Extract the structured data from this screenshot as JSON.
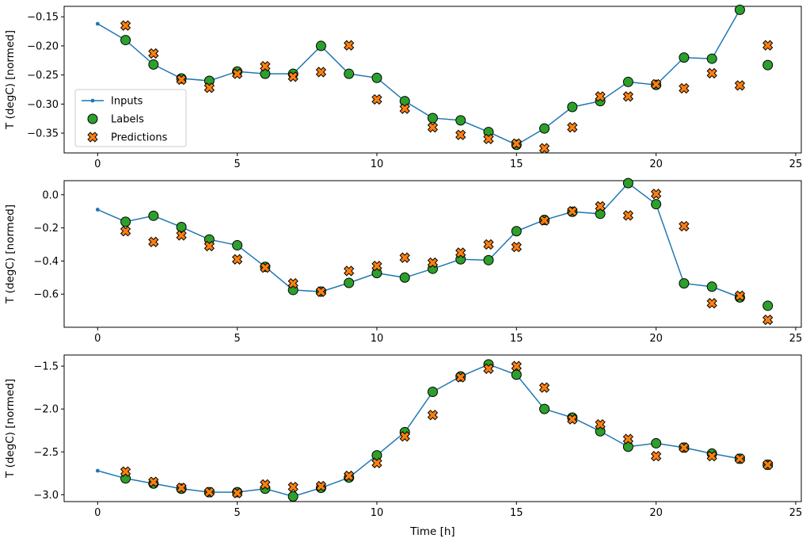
{
  "figure": {
    "xlabel": "Time [h]",
    "ylabel": "T (degC) [normed]",
    "background": "#ffffff"
  },
  "colors": {
    "inputs": "#1f77b4",
    "labels_fill": "#2ca02c",
    "predictions_fill": "#ff7f0e",
    "marker_edge": "#000000",
    "spine": "#000000",
    "legend_border": "#cccccc"
  },
  "legend": {
    "items": [
      {
        "label": "Inputs",
        "type": "line-dot"
      },
      {
        "label": "Labels",
        "type": "circle"
      },
      {
        "label": "Predictions",
        "type": "x"
      }
    ]
  },
  "chart_data": [
    {
      "type": "line",
      "title": "",
      "xlabel": "",
      "ylabel": "T (degC) [normed]",
      "xlim": [
        -1.2,
        25.2
      ],
      "ylim": [
        -0.384,
        -0.132
      ],
      "xticks": [
        0,
        5,
        10,
        15,
        20,
        25
      ],
      "xtick_labels": [
        "0",
        "5",
        "10",
        "15",
        "20",
        "25"
      ],
      "yticks": [
        -0.15,
        -0.2,
        -0.25,
        -0.3,
        -0.35
      ],
      "ytick_labels": [
        "−0.15",
        "−0.20",
        "−0.25",
        "−0.30",
        "−0.35"
      ],
      "series": [
        {
          "name": "Inputs",
          "type": "line",
          "x": [
            0,
            1,
            2,
            3,
            4,
            5,
            6,
            7,
            8,
            9,
            10,
            11,
            12,
            13,
            14,
            15,
            16,
            17,
            18,
            19,
            20,
            21,
            22,
            23
          ],
          "y": [
            -0.162,
            -0.19,
            -0.232,
            -0.256,
            -0.26,
            -0.244,
            -0.248,
            -0.248,
            -0.2,
            -0.248,
            -0.255,
            -0.295,
            -0.324,
            -0.328,
            -0.348,
            -0.37,
            -0.342,
            -0.305,
            -0.295,
            -0.262,
            -0.267,
            -0.22,
            -0.222,
            -0.138
          ]
        },
        {
          "name": "Labels",
          "type": "scatter-circle",
          "x": [
            1,
            2,
            3,
            4,
            5,
            6,
            7,
            8,
            9,
            10,
            11,
            12,
            13,
            14,
            15,
            16,
            17,
            18,
            19,
            20,
            21,
            22,
            23,
            24
          ],
          "y": [
            -0.19,
            -0.232,
            -0.256,
            -0.26,
            -0.244,
            -0.248,
            -0.248,
            -0.2,
            -0.248,
            -0.255,
            -0.295,
            -0.324,
            -0.328,
            -0.348,
            -0.37,
            -0.342,
            -0.305,
            -0.295,
            -0.262,
            -0.267,
            -0.22,
            -0.222,
            -0.138,
            -0.233
          ]
        },
        {
          "name": "Predictions",
          "type": "scatter-x",
          "x": [
            1,
            2,
            3,
            4,
            5,
            6,
            7,
            8,
            9,
            10,
            11,
            12,
            13,
            14,
            15,
            16,
            17,
            18,
            19,
            20,
            21,
            22,
            23,
            24
          ],
          "y": [
            -0.165,
            -0.213,
            -0.258,
            -0.272,
            -0.248,
            -0.235,
            -0.253,
            -0.245,
            -0.199,
            -0.292,
            -0.308,
            -0.34,
            -0.353,
            -0.36,
            -0.368,
            -0.376,
            -0.34,
            -0.287,
            -0.287,
            -0.266,
            -0.273,
            -0.247,
            -0.268,
            -0.199
          ]
        }
      ]
    },
    {
      "type": "line",
      "title": "",
      "xlabel": "",
      "ylabel": "T (degC) [normed]",
      "xlim": [
        -1.2,
        25.2
      ],
      "ylim": [
        -0.8,
        0.085
      ],
      "xticks": [
        0,
        5,
        10,
        15,
        20,
        25
      ],
      "xtick_labels": [
        "0",
        "5",
        "10",
        "15",
        "20",
        "25"
      ],
      "yticks": [
        0.0,
        -0.2,
        -0.4,
        -0.6
      ],
      "ytick_labels": [
        "0.0",
        "−0.2",
        "−0.4",
        "−0.6"
      ],
      "series": [
        {
          "name": "Inputs",
          "type": "line",
          "x": [
            0,
            1,
            2,
            3,
            4,
            5,
            6,
            7,
            8,
            9,
            10,
            11,
            12,
            13,
            14,
            15,
            16,
            17,
            18,
            19,
            20,
            21,
            22,
            23
          ],
          "y": [
            -0.09,
            -0.163,
            -0.127,
            -0.195,
            -0.27,
            -0.305,
            -0.435,
            -0.575,
            -0.585,
            -0.532,
            -0.473,
            -0.5,
            -0.447,
            -0.39,
            -0.395,
            -0.22,
            -0.152,
            -0.103,
            -0.115,
            0.07,
            -0.057,
            -0.535,
            -0.555,
            -0.62
          ]
        },
        {
          "name": "Labels",
          "type": "scatter-circle",
          "x": [
            1,
            2,
            3,
            4,
            5,
            6,
            7,
            8,
            9,
            10,
            11,
            12,
            13,
            14,
            15,
            16,
            17,
            18,
            19,
            20,
            21,
            22,
            23,
            24
          ],
          "y": [
            -0.163,
            -0.127,
            -0.195,
            -0.27,
            -0.305,
            -0.435,
            -0.575,
            -0.585,
            -0.532,
            -0.473,
            -0.5,
            -0.447,
            -0.39,
            -0.395,
            -0.22,
            -0.152,
            -0.103,
            -0.115,
            0.07,
            -0.057,
            -0.535,
            -0.555,
            -0.62,
            -0.67
          ]
        },
        {
          "name": "Predictions",
          "type": "scatter-x",
          "x": [
            1,
            2,
            3,
            4,
            5,
            6,
            7,
            8,
            9,
            10,
            11,
            12,
            13,
            14,
            15,
            16,
            17,
            18,
            19,
            20,
            21,
            22,
            23,
            24
          ],
          "y": [
            -0.22,
            -0.285,
            -0.245,
            -0.31,
            -0.39,
            -0.44,
            -0.535,
            -0.585,
            -0.46,
            -0.43,
            -0.38,
            -0.41,
            -0.35,
            -0.3,
            -0.315,
            -0.155,
            -0.1,
            -0.07,
            -0.125,
            0.005,
            -0.19,
            -0.655,
            -0.61,
            -0.755
          ]
        }
      ]
    },
    {
      "type": "line",
      "title": "",
      "xlabel": "Time [h]",
      "ylabel": "T (degC) [normed]",
      "xlim": [
        -1.2,
        25.2
      ],
      "ylim": [
        -3.08,
        -1.37
      ],
      "xticks": [
        0,
        5,
        10,
        15,
        20,
        25
      ],
      "xtick_labels": [
        "0",
        "5",
        "10",
        "15",
        "20",
        "25"
      ],
      "yticks": [
        -1.5,
        -2.0,
        -2.5,
        -3.0
      ],
      "ytick_labels": [
        "−1.5",
        "−2.0",
        "−2.5",
        "−3.0"
      ],
      "series": [
        {
          "name": "Inputs",
          "type": "line",
          "x": [
            0,
            1,
            2,
            3,
            4,
            5,
            6,
            7,
            8,
            9,
            10,
            11,
            12,
            13,
            14,
            15,
            16,
            17,
            18,
            19,
            20,
            21,
            22,
            23
          ],
          "y": [
            -2.72,
            -2.81,
            -2.87,
            -2.93,
            -2.97,
            -2.97,
            -2.93,
            -3.02,
            -2.92,
            -2.8,
            -2.54,
            -2.27,
            -1.8,
            -1.62,
            -1.48,
            -1.6,
            -2.0,
            -2.1,
            -2.26,
            -2.44,
            -2.4,
            -2.45,
            -2.52,
            -2.58
          ]
        },
        {
          "name": "Labels",
          "type": "scatter-circle",
          "x": [
            1,
            2,
            3,
            4,
            5,
            6,
            7,
            8,
            9,
            10,
            11,
            12,
            13,
            14,
            15,
            16,
            17,
            18,
            19,
            20,
            21,
            22,
            23,
            24
          ],
          "y": [
            -2.81,
            -2.87,
            -2.93,
            -2.97,
            -2.97,
            -2.93,
            -3.02,
            -2.92,
            -2.8,
            -2.54,
            -2.27,
            -1.8,
            -1.62,
            -1.48,
            -1.6,
            -2.0,
            -2.1,
            -2.26,
            -2.44,
            -2.4,
            -2.45,
            -2.52,
            -2.58,
            -2.65
          ]
        },
        {
          "name": "Predictions",
          "type": "scatter-x",
          "x": [
            1,
            2,
            3,
            4,
            5,
            6,
            7,
            8,
            9,
            10,
            11,
            12,
            13,
            14,
            15,
            16,
            17,
            18,
            19,
            20,
            21,
            22,
            23,
            24
          ],
          "y": [
            -2.73,
            -2.85,
            -2.92,
            -2.97,
            -2.98,
            -2.88,
            -2.91,
            -2.9,
            -2.78,
            -2.63,
            -2.32,
            -2.07,
            -1.63,
            -1.53,
            -1.5,
            -1.75,
            -2.12,
            -2.18,
            -2.35,
            -2.55,
            -2.45,
            -2.55,
            -2.58,
            -2.65
          ]
        }
      ]
    }
  ]
}
